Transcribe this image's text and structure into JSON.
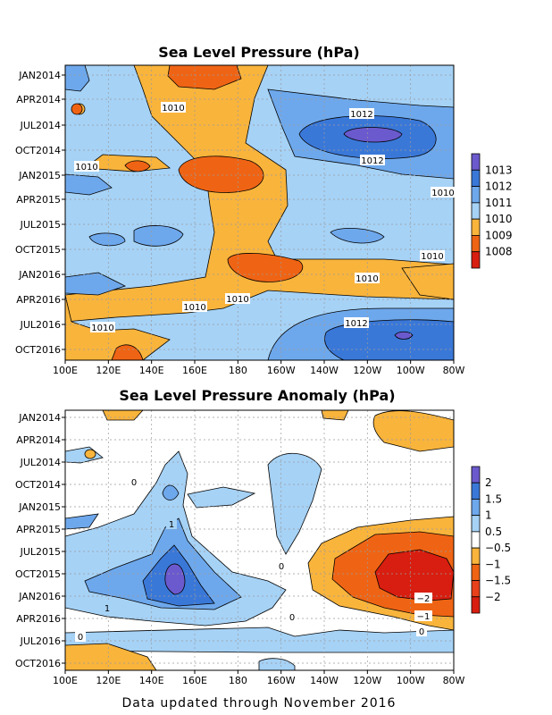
{
  "chart_data": [
    {
      "type": "heatmap",
      "title": "Sea Level Pressure (hPa)",
      "x_ticks": [
        "100E",
        "120E",
        "140E",
        "160E",
        "180",
        "160W",
        "140W",
        "120W",
        "100W",
        "80W"
      ],
      "y_ticks": [
        "JAN2014",
        "APR2014",
        "JUL2014",
        "OCT2014",
        "JAN2015",
        "APR2015",
        "JUL2015",
        "OCT2015",
        "JAN2016",
        "APR2016",
        "JUL2016",
        "OCT2016"
      ],
      "colorbar": [
        {
          "label": "1013",
          "color": "#6b5acd"
        },
        {
          "label": "1012",
          "color": "#3a78d8"
        },
        {
          "label": "1011",
          "color": "#6ea8ec"
        },
        {
          "label": "1010",
          "color": "#a6d2f6"
        },
        {
          "label": "1009",
          "color": "#f9b43c"
        },
        {
          "label": "1008",
          "color": "#ef6414"
        },
        {
          "label": "",
          "color": "#d81e10"
        }
      ],
      "contour_labels": [
        {
          "text": "1010"
        },
        {
          "text": "1012"
        },
        {
          "text": "1012"
        },
        {
          "text": "1010"
        },
        {
          "text": "1010"
        },
        {
          "text": "1010"
        },
        {
          "text": "1010"
        },
        {
          "text": "1010"
        },
        {
          "text": "1010"
        },
        {
          "text": "1010"
        },
        {
          "text": "1012"
        }
      ],
      "grid": true
    },
    {
      "type": "heatmap",
      "title": "Sea Level Pressure Anomaly (hPa)",
      "x_ticks": [
        "100E",
        "120E",
        "140E",
        "160E",
        "180",
        "160W",
        "140W",
        "120W",
        "100W",
        "80W"
      ],
      "y_ticks": [
        "JAN2014",
        "APR2014",
        "JUL2014",
        "OCT2014",
        "JAN2015",
        "APR2015",
        "JUL2015",
        "OCT2015",
        "JAN2016",
        "APR2016",
        "JUL2016",
        "OCT2016"
      ],
      "colorbar": [
        {
          "label": "2",
          "color": "#6b5acd"
        },
        {
          "label": "1.5",
          "color": "#3a78d8"
        },
        {
          "label": "1",
          "color": "#6ea8ec"
        },
        {
          "label": "0.5",
          "color": "#a6d2f6"
        },
        {
          "label": "−0.5",
          "color": "#ffffff"
        },
        {
          "label": "−1",
          "color": "#f9b43c"
        },
        {
          "label": "−1.5",
          "color": "#ef6414"
        },
        {
          "label": "−2",
          "color": "#e8401a"
        },
        {
          "label": "",
          "color": "#d81e10"
        }
      ],
      "contour_labels": [
        {
          "text": "0"
        },
        {
          "text": "1"
        },
        {
          "text": "1"
        },
        {
          "text": "0"
        },
        {
          "text": "0"
        },
        {
          "text": "−2"
        },
        {
          "text": "−1"
        },
        {
          "text": "0"
        },
        {
          "text": "0"
        }
      ],
      "grid": true
    }
  ],
  "footer": "Data updated through November 2016"
}
